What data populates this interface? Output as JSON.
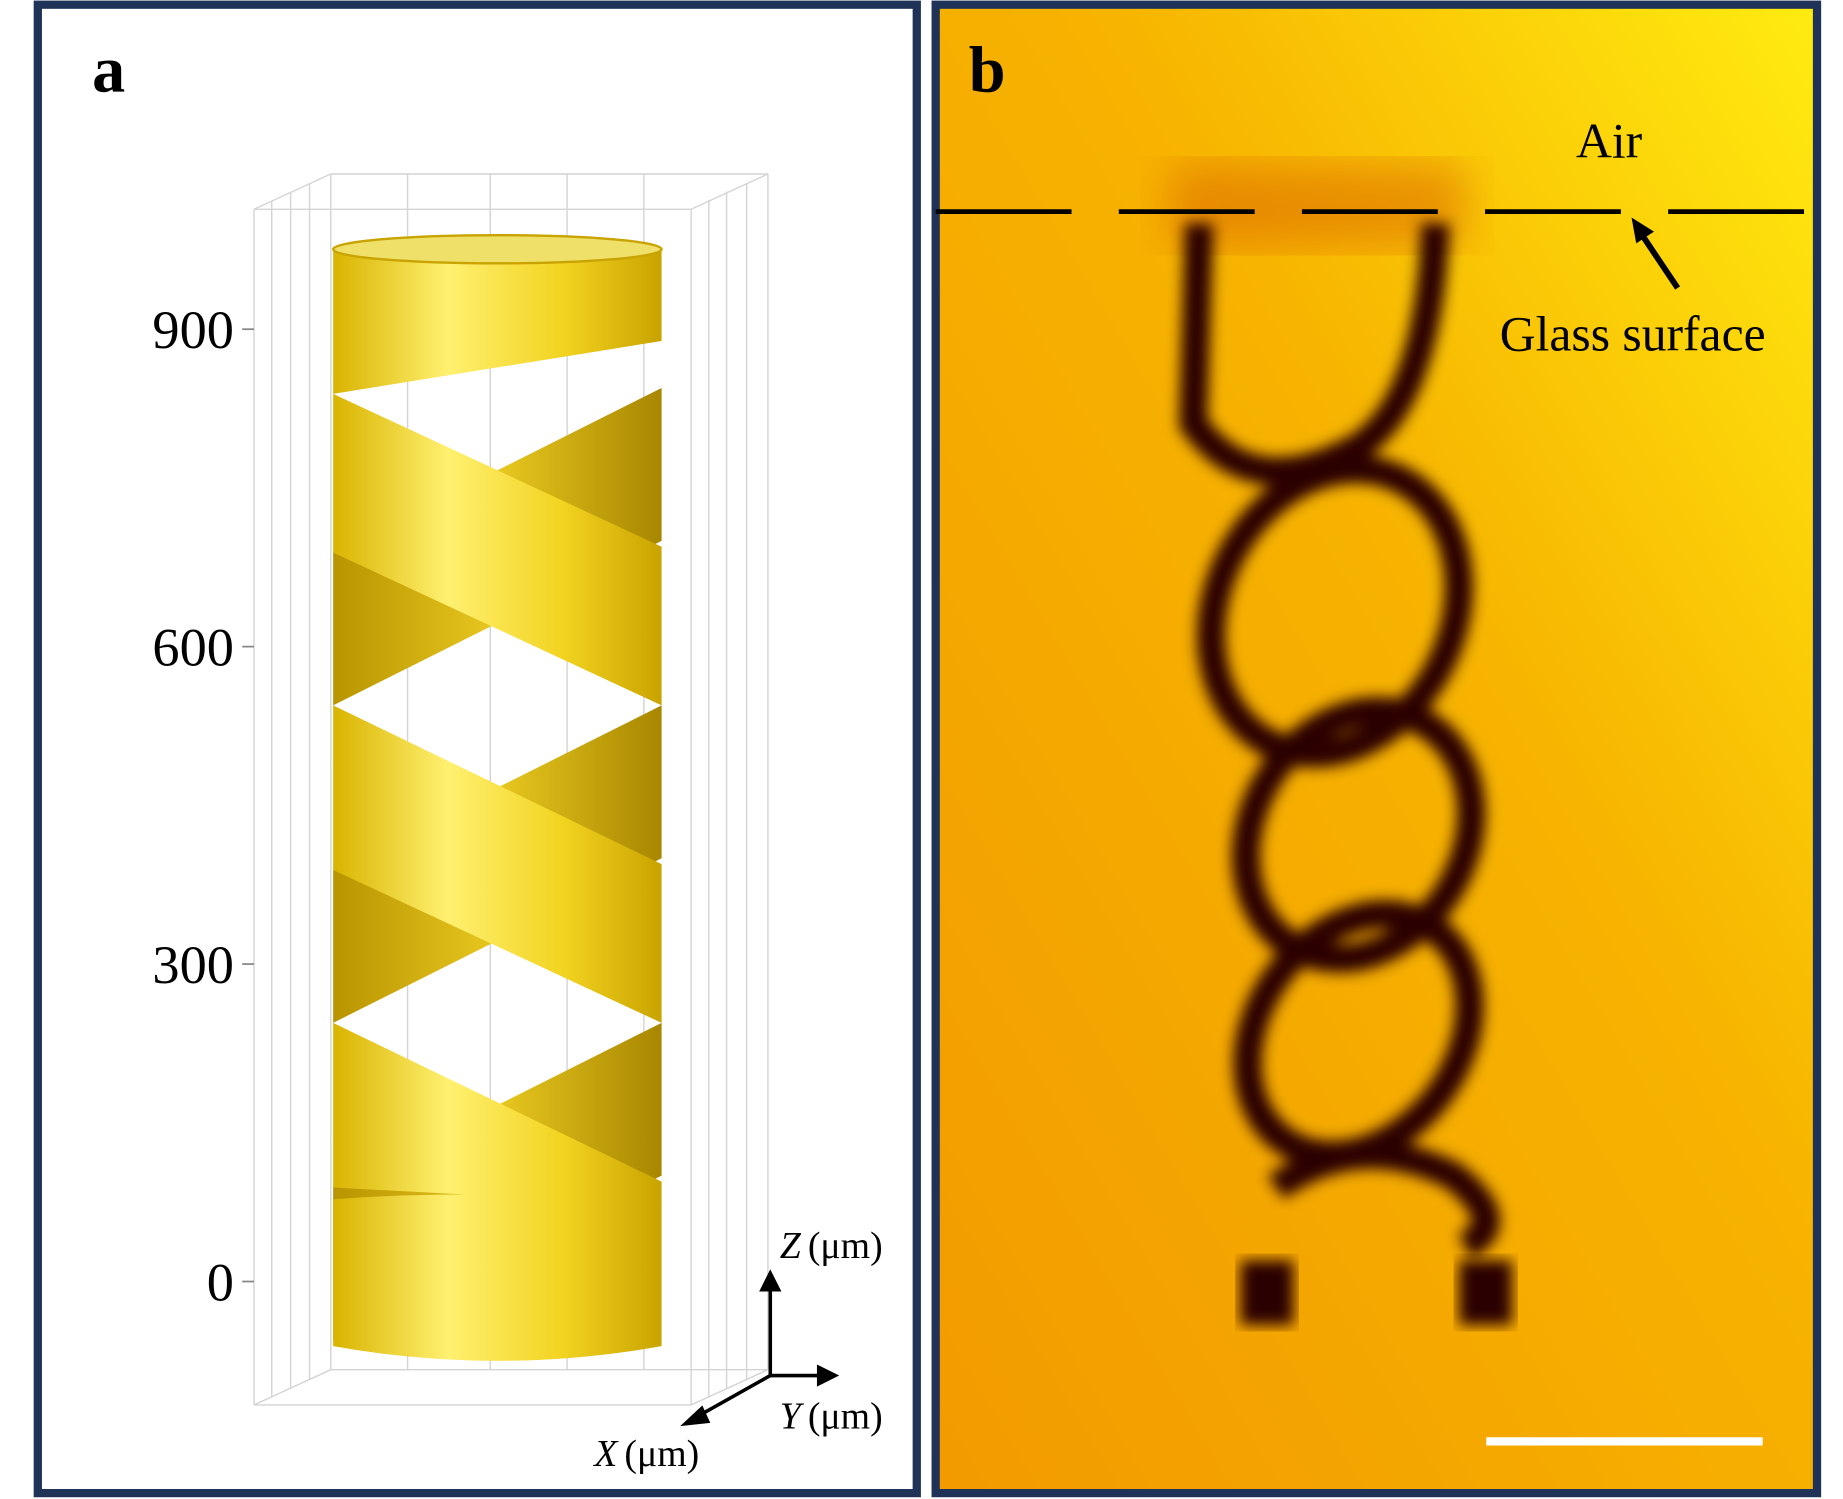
{
  "panels": [
    {
      "label": "a",
      "z_ticks": [
        900,
        600,
        300,
        0
      ],
      "axes": [
        {
          "letter": "Z",
          "unit": "(μm)"
        },
        {
          "letter": "Y",
          "unit": "(μm)"
        },
        {
          "letter": "X",
          "unit": "(μm)"
        }
      ]
    },
    {
      "label": "b",
      "annotations": {
        "air": "Air",
        "glass": "Glass surface"
      }
    }
  ]
}
